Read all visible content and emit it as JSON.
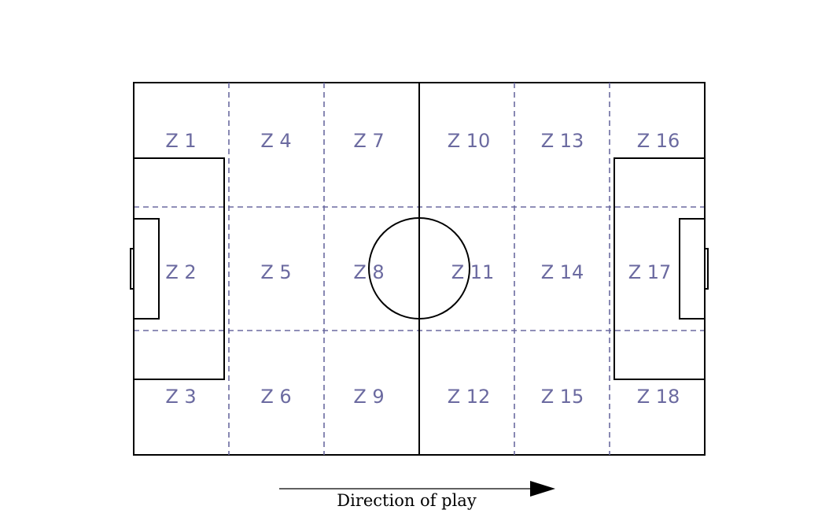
{
  "zones": [
    "Z 1",
    "Z 2",
    "Z 3",
    "Z 4",
    "Z 5",
    "Z 6",
    "Z 7",
    "Z 8",
    "Z 9",
    "Z 10",
    "Z 11",
    "Z 12",
    "Z 13",
    "Z 14",
    "Z 15",
    "Z 16",
    "Z 17",
    "Z 18"
  ],
  "direction_label": "Direction of play",
  "colors": {
    "zone_text": "#6b6aa0",
    "divider": "#6b6aa0",
    "pitch_lines": "#000000"
  }
}
